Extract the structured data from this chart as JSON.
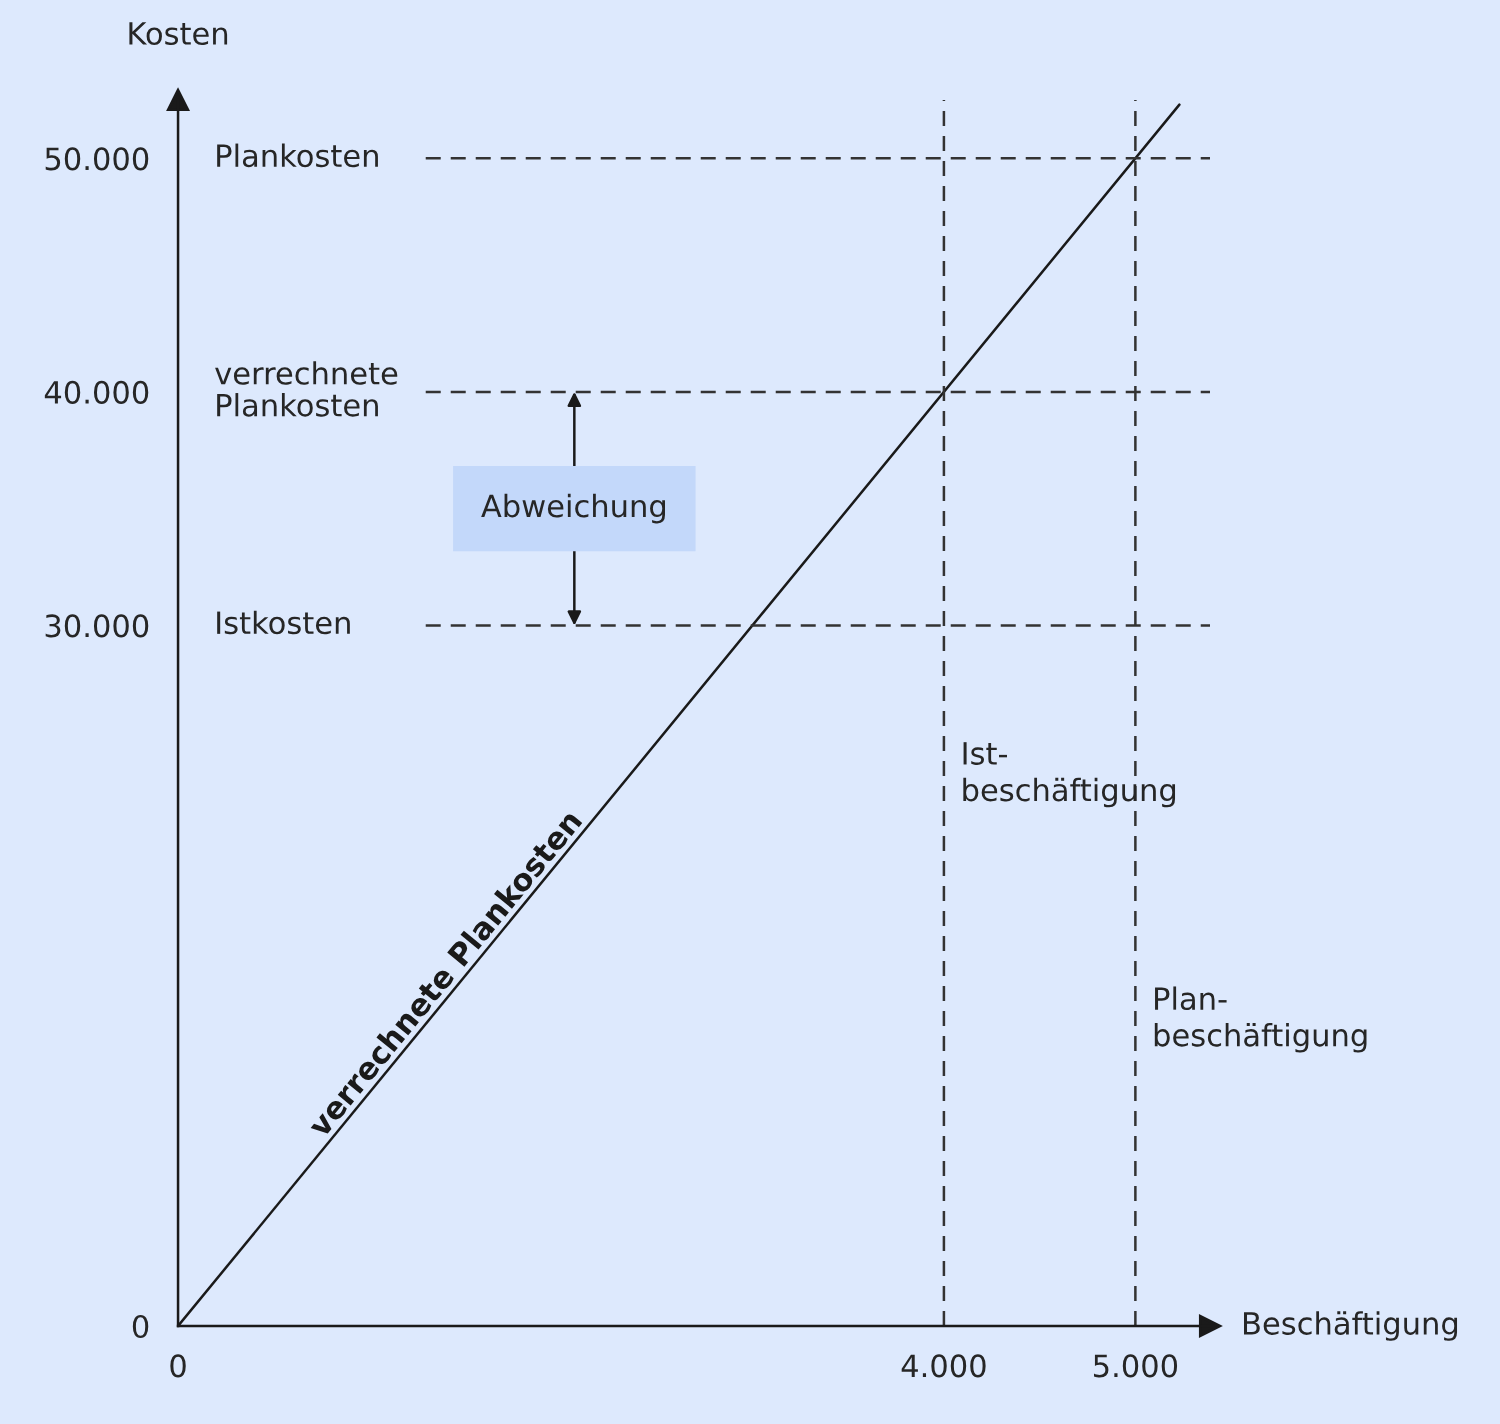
{
  "chart_data": {
    "type": "line",
    "xlabel": "Beschäftigung",
    "ylabel": "Kosten",
    "x": [
      0,
      5230
    ],
    "series": [
      {
        "name": "verrechnete Plankosten",
        "color": "#1a1a1a",
        "values": [
          0,
          52300
        ]
      }
    ],
    "xlim": [
      0,
      5390
    ],
    "ylim": [
      0,
      52500
    ],
    "xticks": [
      0,
      {
        "value": 4000,
        "label": "4.000"
      },
      {
        "value": 5000,
        "label": "5.000"
      }
    ],
    "yticks": [
      0,
      {
        "value": 30000,
        "label": "30.000"
      },
      {
        "value": 40000,
        "label": "40.000"
      },
      {
        "value": 50000,
        "label": "50.000"
      }
    ],
    "ref_lines": [
      {
        "axis": "y",
        "value": 50000,
        "label": "Plankosten",
        "color": "#333333",
        "line_style": "dashed"
      },
      {
        "axis": "y",
        "value": 40000,
        "label": "verrechnete\nPlankosten",
        "color": "#333333",
        "line_style": "dashed"
      },
      {
        "axis": "y",
        "value": 30000,
        "label": "Istkosten",
        "color": "#333333",
        "line_style": "dashed"
      },
      {
        "axis": "x",
        "value": 4000,
        "label": "Ist-\nbeschäftigung",
        "color": "#333333",
        "line_style": "dashed"
      },
      {
        "axis": "x",
        "value": 5000,
        "label": "Plan-\nbeschäftigung",
        "color": "#333333",
        "line_style": "dashed"
      }
    ],
    "annotations": [
      "Abweichung"
    ],
    "grid": false,
    "legend": false,
    "marker": "none",
    "line_style": "solid"
  }
}
